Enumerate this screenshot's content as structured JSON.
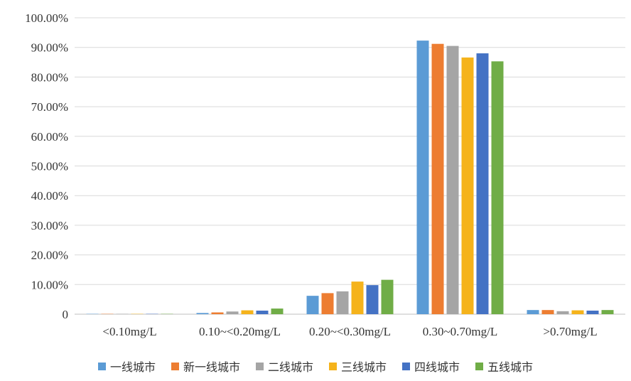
{
  "chart_data": {
    "type": "bar",
    "title": "",
    "xlabel": "",
    "ylabel": "",
    "ylim": [
      0,
      100
    ],
    "y_ticks": [
      "0",
      "10.00%",
      "20.00%",
      "30.00%",
      "40.00%",
      "50.00%",
      "60.00%",
      "70.00%",
      "80.00%",
      "90.00%",
      "100.00%"
    ],
    "grid": true,
    "legend_position": "bottom",
    "categories": [
      "<0.10mg/L",
      "0.10~<0.20mg/L",
      "0.20~<0.30mg/L",
      "0.30~0.70mg/L",
      ">0.70mg/L"
    ],
    "series": [
      {
        "name": "一线城市",
        "color": "#5b9bd5",
        "values": [
          0.1,
          0.4,
          6.2,
          92.3,
          1.4
        ]
      },
      {
        "name": "新一线城市",
        "color": "#ed7d31",
        "values": [
          0.1,
          0.6,
          7.1,
          91.2,
          1.4
        ]
      },
      {
        "name": "二线城市",
        "color": "#a5a5a5",
        "values": [
          0.1,
          0.9,
          7.7,
          90.5,
          1.0
        ]
      },
      {
        "name": "三线城市",
        "color": "#f5b31b",
        "values": [
          0.1,
          1.3,
          11.0,
          86.6,
          1.3
        ]
      },
      {
        "name": "四线城市",
        "color": "#4472c4",
        "values": [
          0.1,
          1.2,
          9.8,
          88.0,
          1.2
        ]
      },
      {
        "name": "五线城市",
        "color": "#70ad47",
        "values": [
          0.1,
          1.9,
          11.6,
          85.3,
          1.4
        ]
      }
    ]
  }
}
